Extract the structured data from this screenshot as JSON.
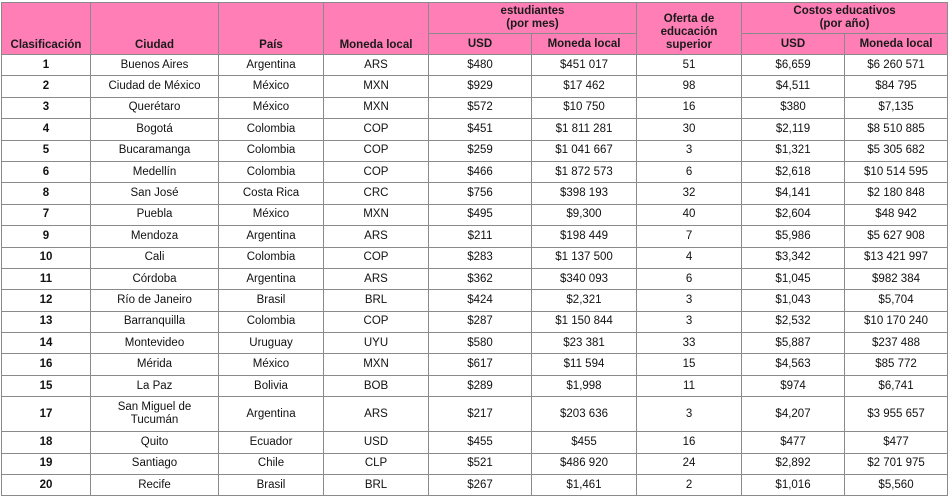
{
  "headers": {
    "clasificacion": "Clasificación",
    "ciudad": "Ciudad",
    "pais": "País",
    "moneda_local": "Moneda local",
    "estudiantes_group_line1": "estudiantes",
    "estudiantes_group_line2": "(por mes)",
    "estudiantes_usd": "USD",
    "estudiantes_local": "Moneda local",
    "oferta": "Oferta de educación superior",
    "costos_group_line1": "Costos educativos",
    "costos_group_line2": "(por año)",
    "costos_usd": "USD",
    "costos_local": "Moneda local"
  },
  "colors": {
    "header_bg": "#ff7eb6",
    "border": "#8a8a8a"
  },
  "rows": [
    {
      "rank": "1",
      "city": "Buenos Aires",
      "country": "Argentina",
      "currency": "ARS",
      "est_usd": "$480",
      "est_local": "$451 017",
      "oferta": "51",
      "cost_usd": "$6,659",
      "cost_local": "$6 260 571"
    },
    {
      "rank": "2",
      "city": "Ciudad de México",
      "country": "México",
      "currency": "MXN",
      "est_usd": "$929",
      "est_local": "$17 462",
      "oferta": "98",
      "cost_usd": "$4,511",
      "cost_local": "$84 795"
    },
    {
      "rank": "3",
      "city": "Querétaro",
      "country": "México",
      "currency": "MXN",
      "est_usd": "$572",
      "est_local": "$10 750",
      "oferta": "16",
      "cost_usd": "$380",
      "cost_local": "$7,135"
    },
    {
      "rank": "4",
      "city": "Bogotá",
      "country": "Colombia",
      "currency": "COP",
      "est_usd": "$451",
      "est_local": "$1 811 281",
      "oferta": "30",
      "cost_usd": "$2,119",
      "cost_local": "$8 510 885"
    },
    {
      "rank": "5",
      "city": "Bucaramanga",
      "country": "Colombia",
      "currency": "COP",
      "est_usd": "$259",
      "est_local": "$1 041 667",
      "oferta": "3",
      "cost_usd": "$1,321",
      "cost_local": "$5 305 682"
    },
    {
      "rank": "6",
      "city": "Medellín",
      "country": "Colombia",
      "currency": "COP",
      "est_usd": "$466",
      "est_local": "$1 872 573",
      "oferta": "6",
      "cost_usd": "$2,618",
      "cost_local": "$10 514 595"
    },
    {
      "rank": "8",
      "city": "San José",
      "country": "Costa Rica",
      "currency": "CRC",
      "est_usd": "$756",
      "est_local": "$398 193",
      "oferta": "32",
      "cost_usd": "$4,141",
      "cost_local": "$2 180 848"
    },
    {
      "rank": "7",
      "city": "Puebla",
      "country": "México",
      "currency": "MXN",
      "est_usd": "$495",
      "est_local": "$9,300",
      "oferta": "40",
      "cost_usd": "$2,604",
      "cost_local": "$48 942"
    },
    {
      "rank": "9",
      "city": "Mendoza",
      "country": "Argentina",
      "currency": "ARS",
      "est_usd": "$211",
      "est_local": "$198 449",
      "oferta": "7",
      "cost_usd": "$5,986",
      "cost_local": "$5 627 908"
    },
    {
      "rank": "10",
      "city": "Cali",
      "country": "Colombia",
      "currency": "COP",
      "est_usd": "$283",
      "est_local": "$1 137 500",
      "oferta": "4",
      "cost_usd": "$3,342",
      "cost_local": "$13 421 997"
    },
    {
      "rank": "11",
      "city": "Córdoba",
      "country": "Argentina",
      "currency": "ARS",
      "est_usd": "$362",
      "est_local": "$340 093",
      "oferta": "6",
      "cost_usd": "$1,045",
      "cost_local": "$982 384"
    },
    {
      "rank": "12",
      "city": "Río de Janeiro",
      "country": "Brasil",
      "currency": "BRL",
      "est_usd": "$424",
      "est_local": "$2,321",
      "oferta": "3",
      "cost_usd": "$1,043",
      "cost_local": "$5,704"
    },
    {
      "rank": "13",
      "city": "Barranquilla",
      "country": "Colombia",
      "currency": "COP",
      "est_usd": "$287",
      "est_local": "$1 150 844",
      "oferta": "3",
      "cost_usd": "$2,532",
      "cost_local": "$10 170 240"
    },
    {
      "rank": "14",
      "city": "Montevideo",
      "country": "Uruguay",
      "currency": "UYU",
      "est_usd": "$580",
      "est_local": "$23 381",
      "oferta": "33",
      "cost_usd": "$5,887",
      "cost_local": "$237 488"
    },
    {
      "rank": "16",
      "city": "Mérida",
      "country": "México",
      "currency": "MXN",
      "est_usd": "$617",
      "est_local": "$11 594",
      "oferta": "15",
      "cost_usd": "$4,563",
      "cost_local": "$85 772"
    },
    {
      "rank": "15",
      "city": "La Paz",
      "country": "Bolivia",
      "currency": "BOB",
      "est_usd": "$289",
      "est_local": "$1,998",
      "oferta": "11",
      "cost_usd": "$974",
      "cost_local": "$6,741"
    },
    {
      "rank": "17",
      "city": "San Miguel de Tucumán",
      "country": "Argentina",
      "currency": "ARS",
      "est_usd": "$217",
      "est_local": "$203 636",
      "oferta": "3",
      "cost_usd": "$4,207",
      "cost_local": "$3 955 657"
    },
    {
      "rank": "18",
      "city": "Quito",
      "country": "Ecuador",
      "currency": "USD",
      "est_usd": "$455",
      "est_local": "$455",
      "oferta": "16",
      "cost_usd": "$477",
      "cost_local": "$477"
    },
    {
      "rank": "19",
      "city": "Santiago",
      "country": "Chile",
      "currency": "CLP",
      "est_usd": "$521",
      "est_local": "$486 920",
      "oferta": "24",
      "cost_usd": "$2,892",
      "cost_local": "$2 701 975"
    },
    {
      "rank": "20",
      "city": "Recife",
      "country": "Brasil",
      "currency": "BRL",
      "est_usd": "$267",
      "est_local": "$1,461",
      "oferta": "2",
      "cost_usd": "$1,016",
      "cost_local": "$5,560"
    }
  ]
}
